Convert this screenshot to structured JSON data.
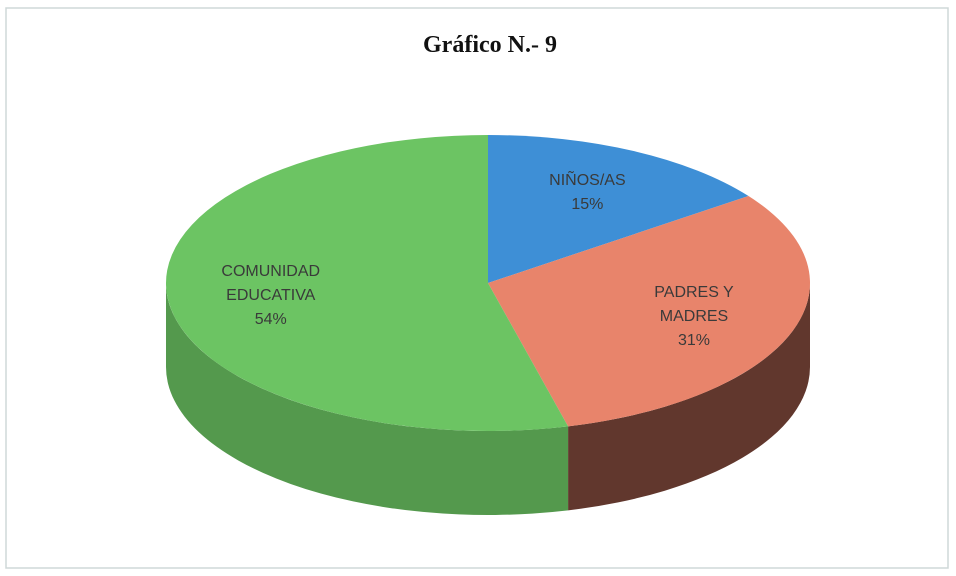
{
  "chart_data": {
    "type": "pie",
    "title": "Gráfico N.- 9",
    "categories": [
      "NIÑOS/AS",
      "PADRES Y MADRES",
      "COMUNIDAD EDUCATIVA"
    ],
    "values": [
      15,
      31,
      54
    ],
    "value_labels": [
      "15%",
      "31%",
      "54%"
    ],
    "colors": [
      "#3e8fd6",
      "#e8846b",
      "#6cc463"
    ]
  }
}
